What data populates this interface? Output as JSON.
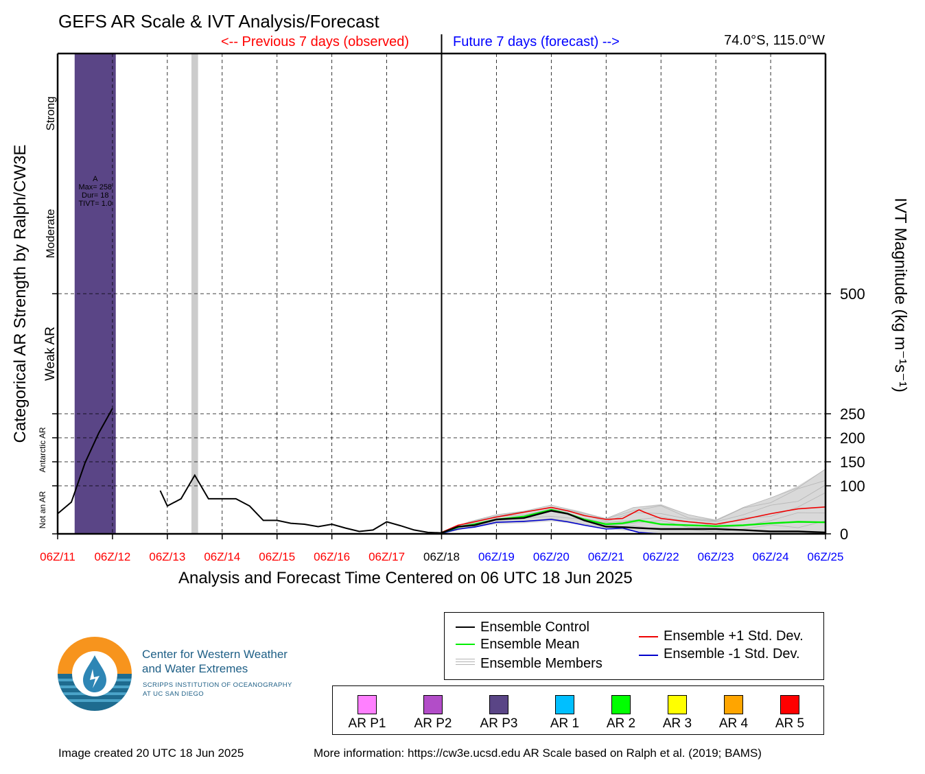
{
  "header": {
    "title": "GEFS AR Scale & IVT Analysis/Forecast",
    "previous_label": "<-- Previous 7 days (observed)",
    "future_label": "Future 7 days (forecast) -->",
    "location": "74.0°S, 115.0°W"
  },
  "colors": {
    "observed": "#ff0000",
    "forecast": "#0000ff",
    "control": "#000000",
    "mean": "#00ee00",
    "plus_std": "#ee0000",
    "minus_std": "#0000cc",
    "members": "#b4b4b4",
    "ar_p3": "#5a4586",
    "missing_band": "#cccccc"
  },
  "chart_data": {
    "type": "line",
    "title": "GEFS AR Scale & IVT Analysis/Forecast",
    "xlabel": "Analysis and Forecast Time Centered on 06 UTC 18 Jun 2025",
    "ylabel_left": "Categorical AR Strength by Ralph/CW3E",
    "ylabel_right": "IVT Magnitude (kg m⁻¹s⁻¹)",
    "x_unit": "days since 06Z/11 Jun 2025",
    "xlim": [
      0,
      14
    ],
    "ylim": [
      0,
      1000
    ],
    "x_ticks": [
      {
        "x": 0,
        "label": "06Z/11",
        "period": "observed"
      },
      {
        "x": 1,
        "label": "06Z/12",
        "period": "observed"
      },
      {
        "x": 2,
        "label": "06Z/13",
        "period": "observed"
      },
      {
        "x": 3,
        "label": "06Z/14",
        "period": "observed"
      },
      {
        "x": 4,
        "label": "06Z/15",
        "period": "observed"
      },
      {
        "x": 5,
        "label": "06Z/16",
        "period": "observed"
      },
      {
        "x": 6,
        "label": "06Z/17",
        "period": "observed"
      },
      {
        "x": 7,
        "label": "06Z/18",
        "period": "analysis"
      },
      {
        "x": 8,
        "label": "06Z/19",
        "period": "forecast"
      },
      {
        "x": 9,
        "label": "06Z/20",
        "period": "forecast"
      },
      {
        "x": 10,
        "label": "06Z/21",
        "period": "forecast"
      },
      {
        "x": 11,
        "label": "06Z/22",
        "period": "forecast"
      },
      {
        "x": 12,
        "label": "06Z/23",
        "period": "forecast"
      },
      {
        "x": 13,
        "label": "06Z/24",
        "period": "forecast"
      },
      {
        "x": 14,
        "label": "06Z/25",
        "period": "forecast"
      }
    ],
    "right_ticks": [
      0,
      100,
      150,
      200,
      250,
      500
    ],
    "category_labels": [
      {
        "label": "Not an AR",
        "y": 50
      },
      {
        "label": "Antarctic AR",
        "y": 175
      },
      {
        "label": "Weak AR",
        "y": 375
      },
      {
        "label": "Moderate",
        "y": 625
      },
      {
        "label": "Strong",
        "y": 875
      }
    ],
    "hlines": [
      100,
      150,
      200,
      250,
      500
    ],
    "analysis_time_x": 7,
    "ar_events": [
      {
        "x_start": 0.31,
        "x_end": 1.06,
        "category": "AR P3",
        "label_lines": [
          "A",
          "Max= 258",
          "Dur= 18",
          "TIVT= 1.0"
        ]
      }
    ],
    "missing_bands": [
      {
        "x_start": 2.44,
        "x_end": 2.56
      }
    ],
    "observed_series": [
      {
        "name": "observed segment 1",
        "x": [
          0,
          0.25,
          0.5,
          0.75,
          1.0
        ],
        "y": [
          42,
          66,
          148,
          210,
          261
        ]
      },
      {
        "name": "observed segment 2",
        "x": [
          1.87,
          2.0,
          2.25,
          2.5,
          2.75,
          3.0,
          3.25,
          3.5,
          3.75,
          4.0,
          4.25,
          4.5,
          4.75,
          5.0,
          5.25,
          5.5,
          5.75,
          6.0,
          6.25,
          6.5,
          6.75,
          7.0
        ],
        "y": [
          90,
          58,
          73,
          122,
          73,
          73,
          73,
          58,
          28,
          28,
          22,
          20,
          15,
          20,
          12,
          5,
          8,
          25,
          17,
          8,
          3,
          2
        ]
      }
    ],
    "series": [
      {
        "name": "Ensemble Control",
        "x": [
          7,
          7.3,
          7.6,
          8,
          8.5,
          9,
          9.3,
          9.6,
          10,
          10.3,
          10.6,
          11,
          11.5,
          12,
          12.5,
          13,
          13.5,
          14
        ],
        "y": [
          2,
          15,
          18,
          30,
          33,
          48,
          42,
          28,
          15,
          14,
          12,
          10,
          10,
          10,
          8,
          5,
          5,
          3
        ]
      },
      {
        "name": "Ensemble Mean",
        "x": [
          7,
          7.3,
          7.6,
          8,
          8.5,
          9,
          9.3,
          9.6,
          10,
          10.3,
          10.6,
          11,
          11.5,
          12,
          12.5,
          13,
          13.5,
          14
        ],
        "y": [
          2,
          14,
          20,
          30,
          36,
          50,
          42,
          30,
          20,
          22,
          28,
          20,
          18,
          16,
          18,
          22,
          25,
          24
        ]
      },
      {
        "name": "Ensemble +1 Std. Dev.",
        "x": [
          7,
          7.3,
          7.6,
          8,
          8.5,
          9,
          9.3,
          9.6,
          10,
          10.3,
          10.6,
          10.7,
          11,
          11.5,
          12,
          12.5,
          13,
          13.5,
          14
        ],
        "y": [
          3,
          18,
          25,
          35,
          45,
          55,
          48,
          38,
          30,
          32,
          50,
          45,
          32,
          25,
          20,
          30,
          42,
          52,
          56
        ]
      },
      {
        "name": "Ensemble -1 Std. Dev.",
        "x": [
          7,
          7.3,
          7.6,
          8,
          8.5,
          9,
          9.3,
          9.6,
          10,
          10.3,
          10.6,
          11,
          11.5,
          12,
          12.5,
          13,
          13.5,
          14
        ],
        "y": [
          1,
          10,
          14,
          24,
          26,
          30,
          25,
          18,
          10,
          12,
          3,
          0,
          0,
          0,
          0,
          0,
          0,
          0
        ]
      }
    ],
    "member_envelope": {
      "x": [
        7,
        7.5,
        8,
        8.5,
        9,
        9.5,
        10,
        10.5,
        11,
        11.5,
        12,
        12.5,
        13,
        13.5,
        14
      ],
      "y_low": [
        0,
        12,
        20,
        22,
        26,
        20,
        10,
        5,
        2,
        2,
        2,
        2,
        2,
        2,
        2
      ],
      "y_high": [
        4,
        25,
        40,
        48,
        60,
        48,
        32,
        55,
        62,
        40,
        30,
        55,
        75,
        100,
        135
      ]
    }
  },
  "legend": {
    "items": [
      {
        "label": "Ensemble Control",
        "key": "control"
      },
      {
        "label": "Ensemble Mean",
        "key": "mean"
      },
      {
        "label": "Ensemble Members",
        "key": "members"
      },
      {
        "label": "Ensemble +1 Std. Dev.",
        "key": "plus_std"
      },
      {
        "label": "Ensemble -1 Std. Dev.",
        "key": "minus_std"
      }
    ]
  },
  "categories": [
    {
      "label": "AR P1",
      "color": "#ff80ff"
    },
    {
      "label": "AR P2",
      "color": "#b24dc8"
    },
    {
      "label": "AR P3",
      "color": "#5a4586"
    },
    {
      "label": "AR 1",
      "color": "#00bfff"
    },
    {
      "label": "AR 2",
      "color": "#00ff00"
    },
    {
      "label": "AR 3",
      "color": "#ffff00"
    },
    {
      "label": "AR 4",
      "color": "#ffa500"
    },
    {
      "label": "AR 5",
      "color": "#ff0000"
    }
  ],
  "logo": {
    "line1": "Center for Western Weather",
    "line2": "and Water Extremes",
    "line3": "SCRIPPS INSTITUTION OF OCEANOGRAPHY",
    "line4": "AT UC SAN DIEGO"
  },
  "footer": {
    "created": "Image created 20 UTC 18 Jun 2025",
    "more_info": "More information: https://cw3e.ucsd.edu AR Scale based on Ralph et al. (2019; BAMS)"
  }
}
